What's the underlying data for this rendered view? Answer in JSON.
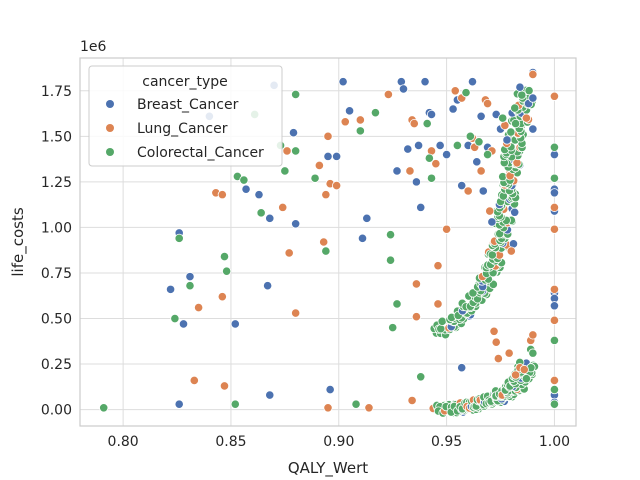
{
  "chart_data": {
    "type": "scatter",
    "xlabel": "QALY_Wert",
    "ylabel": "life_costs",
    "y_offset_label": "1e6",
    "xlim": [
      0.78,
      1.01
    ],
    "ylim": [
      -0.09,
      1.93
    ],
    "x_ticks": [
      0.8,
      0.85,
      0.9,
      0.95,
      1.0
    ],
    "x_tick_labels": [
      "0.80",
      "0.85",
      "0.90",
      "0.95",
      "1.00"
    ],
    "y_ticks": [
      0.0,
      0.25,
      0.5,
      0.75,
      1.0,
      1.25,
      1.5,
      1.75
    ],
    "y_tick_labels": [
      "0.00",
      "0.25",
      "0.50",
      "0.75",
      "1.00",
      "1.25",
      "1.50",
      "1.75"
    ],
    "grid": true,
    "legend": {
      "title": "cancer_type",
      "placement": "top-left",
      "entries": [
        "Breast_Cancer",
        "Lung_Cancer",
        "Colorectal_Cancer"
      ]
    },
    "colors": {
      "Breast_Cancer": "#4c72b0",
      "Lung_Cancer": "#dd8452",
      "Colorectal_Cancer": "#55a868"
    },
    "series": [
      {
        "name": "Breast_Cancer",
        "points": [
          [
            0.822,
            0.66
          ],
          [
            0.826,
            0.97
          ],
          [
            0.826,
            0.03
          ],
          [
            0.828,
            0.47
          ],
          [
            0.831,
            0.73
          ],
          [
            0.84,
            1.61
          ],
          [
            0.852,
            0.47
          ],
          [
            0.857,
            1.21
          ],
          [
            0.863,
            1.18
          ],
          [
            0.867,
            0.68
          ],
          [
            0.868,
            0.08
          ],
          [
            0.87,
            1.78
          ],
          [
            0.868,
            1.05
          ],
          [
            0.879,
            1.52
          ],
          [
            0.88,
            1.02
          ],
          [
            0.895,
            1.39
          ],
          [
            0.896,
            0.11
          ],
          [
            0.899,
            1.39
          ],
          [
            0.902,
            1.8
          ],
          [
            0.905,
            1.64
          ],
          [
            0.911,
            0.94
          ],
          [
            0.913,
            1.05
          ],
          [
            0.927,
            1.31
          ],
          [
            0.929,
            1.8
          ],
          [
            0.93,
            1.76
          ],
          [
            0.932,
            1.43
          ],
          [
            0.936,
            1.25
          ],
          [
            0.937,
            1.45
          ],
          [
            0.938,
            1.11
          ],
          [
            0.94,
            1.8
          ],
          [
            0.942,
            1.63
          ],
          [
            0.943,
            1.62
          ],
          [
            0.947,
            1.45
          ],
          [
            0.95,
            1.4
          ],
          [
            0.953,
            1.65
          ],
          [
            0.955,
            1.7
          ],
          [
            0.957,
            1.23
          ],
          [
            0.957,
            0.23
          ],
          [
            0.96,
            1.45
          ],
          [
            0.962,
            1.8
          ],
          [
            0.964,
            1.36
          ],
          [
            0.966,
            1.61
          ],
          [
            0.967,
            1.2
          ],
          [
            0.969,
            1.44
          ],
          [
            0.971,
            1.03
          ],
          [
            0.973,
            1.62
          ],
          [
            0.975,
            1.54
          ],
          [
            0.978,
            1.48
          ],
          [
            0.981,
            0.91
          ],
          [
            0.984,
            1.77
          ],
          [
            0.988,
            1.68
          ],
          [
            0.99,
            1.85
          ],
          [
            0.99,
            1.71
          ],
          [
            0.99,
            1.54
          ],
          [
            1.0,
            1.4
          ],
          [
            1.0,
            1.21
          ],
          [
            1.0,
            1.19
          ],
          [
            1.0,
            1.09
          ],
          [
            1.0,
            0.64
          ],
          [
            1.0,
            0.61
          ],
          [
            1.0,
            0.57
          ],
          [
            1.0,
            0.08
          ],
          [
            1.0,
            0.04
          ]
        ]
      },
      {
        "name": "Lung_Cancer",
        "points": [
          [
            0.833,
            0.16
          ],
          [
            0.835,
            0.56
          ],
          [
            0.843,
            1.19
          ],
          [
            0.846,
            1.18
          ],
          [
            0.846,
            0.62
          ],
          [
            0.847,
            0.13
          ],
          [
            0.874,
            1.11
          ],
          [
            0.876,
            1.42
          ],
          [
            0.877,
            0.86
          ],
          [
            0.88,
            0.53
          ],
          [
            0.891,
            1.34
          ],
          [
            0.893,
            0.92
          ],
          [
            0.894,
            1.18
          ],
          [
            0.895,
            1.5
          ],
          [
            0.895,
            0.01
          ],
          [
            0.896,
            1.24
          ],
          [
            0.899,
            1.23
          ],
          [
            0.903,
            1.58
          ],
          [
            0.91,
            1.59
          ],
          [
            0.914,
            0.01
          ],
          [
            0.923,
            1.73
          ],
          [
            0.933,
            1.31
          ],
          [
            0.934,
            1.59
          ],
          [
            0.935,
            1.57
          ],
          [
            0.934,
            0.05
          ],
          [
            0.936,
            0.69
          ],
          [
            0.936,
            0.51
          ],
          [
            0.943,
            1.42
          ],
          [
            0.945,
            1.35
          ],
          [
            0.946,
            0.79
          ],
          [
            0.946,
            0.58
          ],
          [
            0.95,
            0.99
          ],
          [
            0.954,
            1.75
          ],
          [
            0.957,
            1.71
          ],
          [
            0.96,
            1.2
          ],
          [
            0.962,
            1.49
          ],
          [
            0.963,
            1.44
          ],
          [
            0.966,
            1.31
          ],
          [
            0.968,
            1.7
          ],
          [
            0.969,
            1.68
          ],
          [
            0.97,
            1.09
          ],
          [
            0.971,
            1.42
          ],
          [
            0.972,
            0.43
          ],
          [
            0.973,
            0.37
          ],
          [
            0.974,
            0.28
          ],
          [
            0.977,
            1.56
          ],
          [
            0.979,
            0.31
          ],
          [
            0.98,
            0.87
          ],
          [
            0.982,
            0.19
          ],
          [
            0.984,
            0.23
          ],
          [
            0.986,
            0.22
          ],
          [
            0.987,
            1.6
          ],
          [
            0.989,
            0.38
          ],
          [
            0.99,
            0.41
          ],
          [
            0.99,
            1.84
          ],
          [
            1.0,
            1.72
          ],
          [
            1.0,
            1.11
          ],
          [
            1.0,
            0.99
          ],
          [
            1.0,
            0.66
          ],
          [
            1.0,
            0.49
          ],
          [
            1.0,
            0.16
          ]
        ]
      },
      {
        "name": "Colorectal_Cancer",
        "points": [
          [
            0.791,
            0.01
          ],
          [
            0.824,
            0.5
          ],
          [
            0.826,
            0.94
          ],
          [
            0.831,
            0.68
          ],
          [
            0.847,
            0.84
          ],
          [
            0.848,
            0.76
          ],
          [
            0.852,
            0.03
          ],
          [
            0.853,
            1.28
          ],
          [
            0.856,
            1.26
          ],
          [
            0.861,
            1.62
          ],
          [
            0.864,
            1.08
          ],
          [
            0.873,
            1.45
          ],
          [
            0.875,
            1.31
          ],
          [
            0.88,
            1.73
          ],
          [
            0.88,
            1.42
          ],
          [
            0.889,
            1.27
          ],
          [
            0.894,
            0.87
          ],
          [
            0.908,
            0.03
          ],
          [
            0.91,
            1.53
          ],
          [
            0.917,
            1.63
          ],
          [
            0.924,
            0.96
          ],
          [
            0.924,
            0.82
          ],
          [
            0.925,
            0.45
          ],
          [
            0.927,
            0.58
          ],
          [
            0.938,
            0.18
          ],
          [
            0.941,
            1.57
          ],
          [
            0.942,
            1.38
          ],
          [
            0.943,
            1.27
          ],
          [
            0.955,
            1.45
          ],
          [
            0.959,
            1.74
          ],
          [
            0.961,
            1.5
          ],
          [
            0.965,
            1.47
          ],
          [
            0.969,
            1.4
          ],
          [
            0.976,
            1.6
          ],
          [
            0.982,
            1.57
          ],
          [
            0.987,
            0.17
          ],
          [
            0.989,
            0.33
          ],
          [
            0.99,
            0.31
          ],
          [
            1.0,
            1.44
          ],
          [
            1.0,
            1.27
          ],
          [
            1.0,
            0.38
          ],
          [
            1.0,
            0.11
          ],
          [
            1.0,
            0.03
          ]
        ]
      }
    ],
    "dense_clusters": [
      {
        "series": "Colorectal_Cancer",
        "overlay_series": [
          "Breast_Cancer",
          "Lung_Cancer"
        ],
        "description_points": [
          [
            0.947,
            0.42
          ],
          [
            0.952,
            0.47
          ],
          [
            0.957,
            0.52
          ],
          [
            0.962,
            0.58
          ],
          [
            0.966,
            0.65
          ],
          [
            0.969,
            0.72
          ],
          [
            0.972,
            0.8
          ],
          [
            0.974,
            0.88
          ],
          [
            0.976,
            0.96
          ],
          [
            0.977,
            1.05
          ],
          [
            0.978,
            1.15
          ],
          [
            0.979,
            1.25
          ],
          [
            0.98,
            1.35
          ],
          [
            0.981,
            1.45
          ],
          [
            0.983,
            1.55
          ],
          [
            0.985,
            1.65
          ],
          [
            0.987,
            1.75
          ]
        ]
      },
      {
        "series": "Colorectal_Cancer",
        "overlay_series": [
          "Breast_Cancer",
          "Lung_Cancer"
        ],
        "description_points": [
          [
            0.947,
            0.0
          ],
          [
            0.955,
            0.01
          ],
          [
            0.962,
            0.02
          ],
          [
            0.968,
            0.04
          ],
          [
            0.973,
            0.06
          ],
          [
            0.977,
            0.08
          ],
          [
            0.98,
            0.11
          ],
          [
            0.983,
            0.15
          ],
          [
            0.985,
            0.19
          ],
          [
            0.987,
            0.24
          ]
        ]
      }
    ]
  }
}
